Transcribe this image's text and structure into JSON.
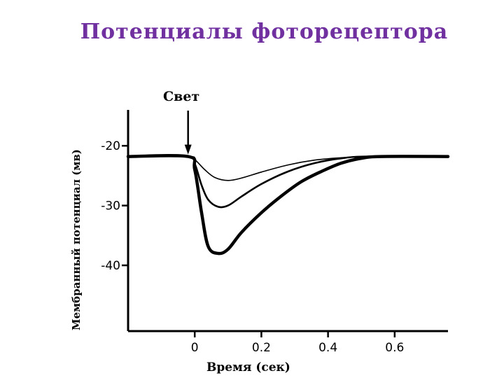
{
  "title": "Потенциалы фоторецептора",
  "chart_data": {
    "type": "line",
    "ylabel": "Мембранный потенциал (мв)",
    "xlabel": "Время (сек)",
    "annotation": "Свет",
    "x_ticks": [
      0,
      0.2,
      0.4,
      0.6
    ],
    "x_tick_labels": [
      "0",
      "0.2",
      "0.4",
      "0.6"
    ],
    "y_ticks": [
      -20,
      -30,
      -40
    ],
    "y_tick_labels": [
      "-20",
      "-30",
      "-40"
    ],
    "xlim": [
      -0.2,
      0.76
    ],
    "ylim": [
      -51,
      -14
    ],
    "light_onset_x": -0.02,
    "series": [
      {
        "x": [
          -0.2,
          -0.02,
          0.0,
          0.03,
          0.06,
          0.1,
          0.14,
          0.2,
          0.28,
          0.36,
          0.44,
          0.52,
          0.6,
          0.76
        ],
        "y": [
          -21.8,
          -21.8,
          -22.3,
          -24.0,
          -25.3,
          -25.8,
          -25.4,
          -24.4,
          -23.2,
          -22.4,
          -22.0,
          -21.8,
          -21.8,
          -21.8
        ],
        "stroke": "thin"
      },
      {
        "x": [
          -0.2,
          -0.02,
          0.0,
          0.02,
          0.04,
          0.07,
          0.1,
          0.14,
          0.2,
          0.28,
          0.36,
          0.44,
          0.52,
          0.76
        ],
        "y": [
          -21.8,
          -21.8,
          -23.0,
          -26.5,
          -29.0,
          -30.2,
          -30.0,
          -28.5,
          -26.4,
          -24.3,
          -22.9,
          -22.1,
          -21.8,
          -21.8
        ],
        "stroke": "medium"
      },
      {
        "x": [
          -0.2,
          -0.02,
          0.0,
          0.02,
          0.04,
          0.07,
          0.1,
          0.14,
          0.2,
          0.26,
          0.32,
          0.38,
          0.44,
          0.5,
          0.56,
          0.76
        ],
        "y": [
          -21.8,
          -21.8,
          -24.0,
          -31.0,
          -36.8,
          -38.0,
          -37.3,
          -34.5,
          -31.2,
          -28.4,
          -26.0,
          -24.3,
          -22.9,
          -22.1,
          -21.8,
          -21.8
        ],
        "stroke": "thick"
      }
    ]
  }
}
